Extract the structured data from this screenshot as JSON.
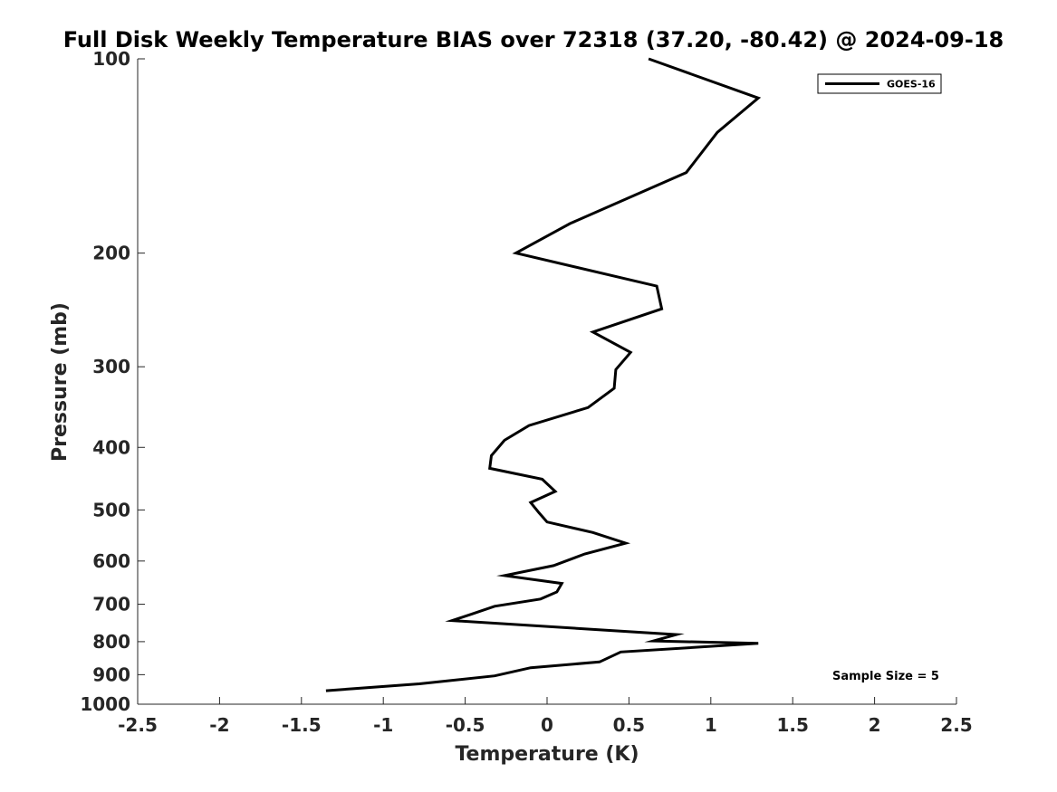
{
  "chart_data": {
    "type": "line",
    "title": "Full Disk Weekly Temperature BIAS over 72318 (37.20, -80.42) @ 2024-09-18",
    "xlabel": "Temperature (K)",
    "ylabel": "Pressure (mb)",
    "xlim": [
      -2.5,
      2.5
    ],
    "ylim": [
      100,
      1000
    ],
    "y_scale": "log",
    "y_reversed": true,
    "grid": false,
    "legend_position": "top-right",
    "x_ticks": [
      -2.5,
      -2,
      -1.5,
      -1,
      -0.5,
      0,
      0.5,
      1,
      1.5,
      2,
      2.5
    ],
    "x_tick_labels": [
      "-2.5",
      "-2",
      "-1.5",
      "-1",
      "-0.5",
      "0",
      "0.5",
      "1",
      "1.5",
      "2",
      "2.5"
    ],
    "y_ticks": [
      100,
      200,
      300,
      400,
      500,
      600,
      700,
      800,
      900,
      1000
    ],
    "y_tick_labels": [
      "100",
      "200",
      "300",
      "400",
      "500",
      "600",
      "700",
      "800",
      "900",
      "1000"
    ],
    "annotation": "Sample Size = 5",
    "series": [
      {
        "name": "GOES-16",
        "color": "#000000",
        "x": [
          0.62,
          1.29,
          1.04,
          0.85,
          0.14,
          -0.19,
          0.67,
          0.7,
          0.28,
          0.51,
          0.42,
          0.41,
          0.25,
          -0.11,
          -0.26,
          -0.34,
          -0.35,
          -0.03,
          0.05,
          -0.1,
          -0.05,
          0.0,
          0.28,
          0.48,
          0.23,
          0.04,
          -0.26,
          0.09,
          0.06,
          -0.04,
          -0.32,
          -0.46,
          -0.58,
          0.79,
          0.65,
          1.29,
          0.45,
          0.32,
          -0.1,
          -0.32,
          -0.78,
          -1.35
        ],
        "y": [
          100,
          115,
          130,
          150,
          180,
          200,
          225,
          244,
          265,
          285,
          303,
          324,
          347,
          370,
          390,
          412,
          431,
          448,
          468,
          487,
          505,
          522,
          542,
          563,
          585,
          610,
          632,
          650,
          670,
          687,
          705,
          725,
          742,
          780,
          798,
          805,
          830,
          860,
          878,
          904,
          930,
          953
        ]
      }
    ]
  }
}
